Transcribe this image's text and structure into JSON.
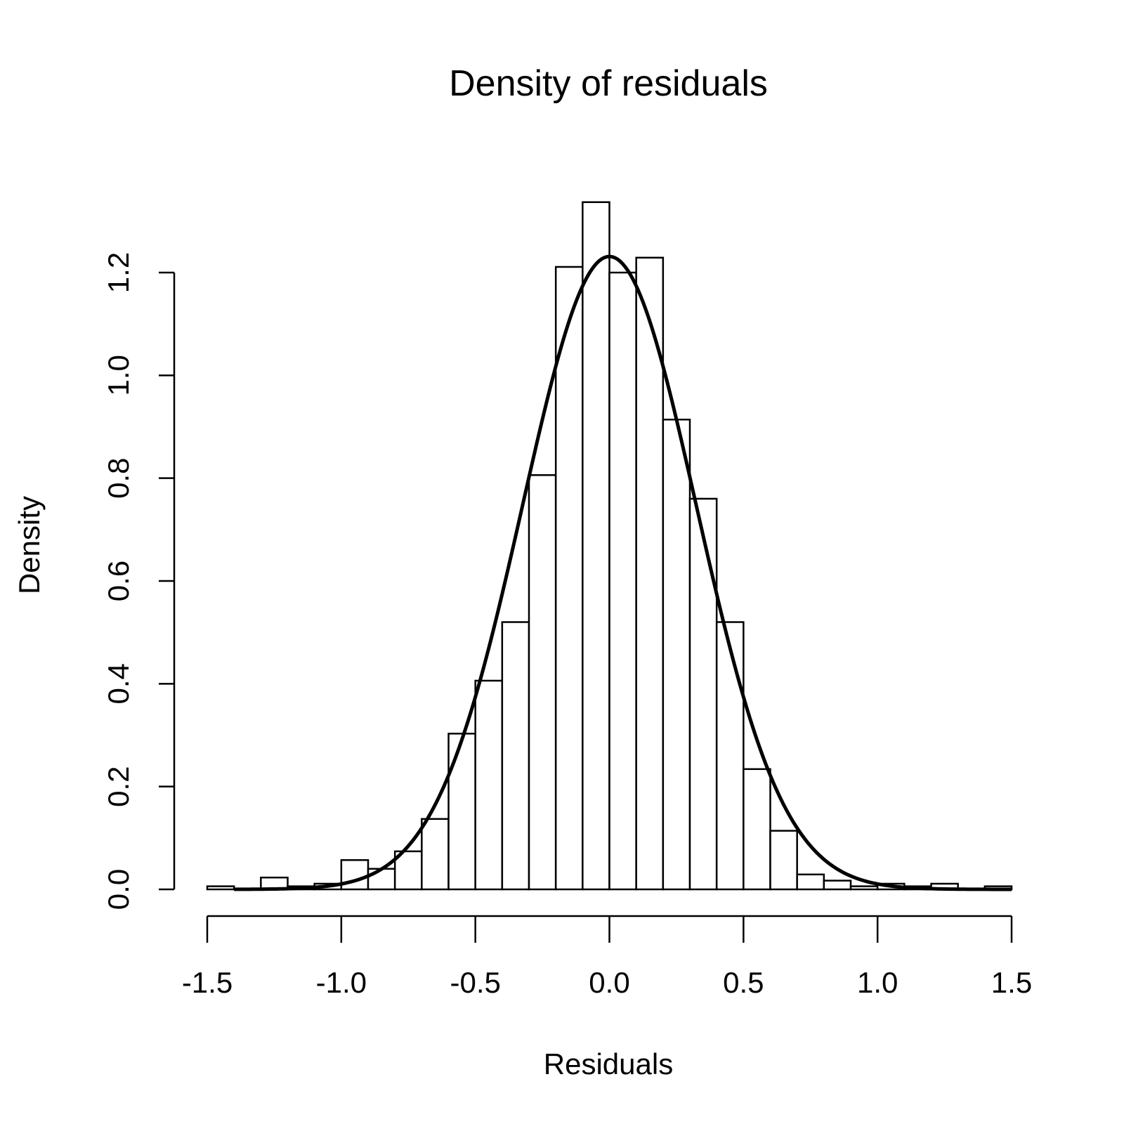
{
  "chart_data": {
    "type": "histogram",
    "title": "Density of residuals",
    "xlabel": "Residuals",
    "ylabel": "Density",
    "xlim": [
      -1.5,
      1.5
    ],
    "ylim": [
      0,
      1.2
    ],
    "xticks": [
      -1.5,
      -1.0,
      -0.5,
      0.0,
      0.5,
      1.0,
      1.5
    ],
    "xtick_labels": [
      "-1.5",
      "-1.0",
      "-0.5",
      "0.0",
      "0.5",
      "1.0",
      "1.5"
    ],
    "yticks": [
      0.0,
      0.2,
      0.4,
      0.6,
      0.8,
      1.0,
      1.2
    ],
    "ytick_labels": [
      "0.0",
      "0.2",
      "0.4",
      "0.6",
      "0.8",
      "1.0",
      "1.2"
    ],
    "grid": false,
    "bin_edges": [
      -1.5,
      -1.4,
      -1.3,
      -1.2,
      -1.1,
      -1.0,
      -0.9,
      -0.8,
      -0.7,
      -0.6,
      -0.5,
      -0.4,
      -0.3,
      -0.2,
      -0.1,
      0.0,
      0.1,
      0.2,
      0.3,
      0.4,
      0.5,
      0.6,
      0.7,
      0.8,
      0.9,
      1.0,
      1.1,
      1.2,
      1.3,
      1.4,
      1.5
    ],
    "densities": [
      0.006,
      0.0,
      0.023,
      0.006,
      0.011,
      0.057,
      0.04,
      0.074,
      0.137,
      0.303,
      0.406,
      0.52,
      0.806,
      1.211,
      1.337,
      1.2,
      1.229,
      0.914,
      0.76,
      0.52,
      0.234,
      0.114,
      0.029,
      0.017,
      0.006,
      0.011,
      0.006,
      0.011,
      0.0,
      0.006
    ],
    "curve": {
      "type": "normal-density",
      "mean": 0.0,
      "sd": 0.324,
      "x_range": [
        -1.4,
        1.5
      ]
    }
  }
}
